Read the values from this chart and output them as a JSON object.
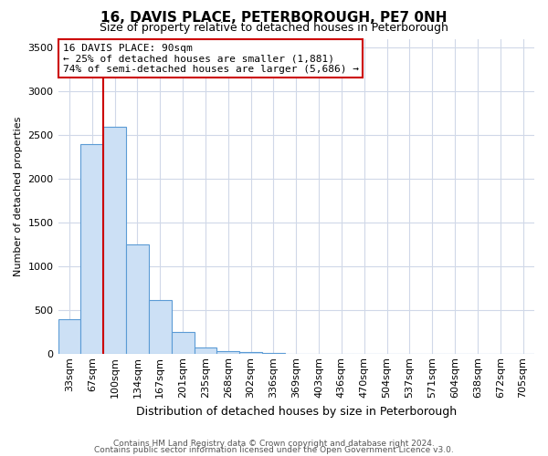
{
  "title": "16, DAVIS PLACE, PETERBOROUGH, PE7 0NH",
  "subtitle": "Size of property relative to detached houses in Peterborough",
  "xlabel": "Distribution of detached houses by size in Peterborough",
  "ylabel": "Number of detached properties",
  "categories": [
    "33sqm",
    "67sqm",
    "100sqm",
    "134sqm",
    "167sqm",
    "201sqm",
    "235sqm",
    "268sqm",
    "302sqm",
    "336sqm",
    "369sqm",
    "403sqm",
    "436sqm",
    "470sqm",
    "504sqm",
    "537sqm",
    "571sqm",
    "604sqm",
    "638sqm",
    "672sqm",
    "705sqm"
  ],
  "values": [
    400,
    2400,
    2600,
    1250,
    620,
    250,
    75,
    40,
    20,
    10,
    5,
    0,
    0,
    0,
    0,
    0,
    0,
    0,
    0,
    0,
    0
  ],
  "bar_color": "#cce0f5",
  "bar_edge_color": "#5b9bd5",
  "red_line_x": 1.5,
  "annotation_line1": "16 DAVIS PLACE: 90sqm",
  "annotation_line2": "← 25% of detached houses are smaller (1,881)",
  "annotation_line3": "74% of semi-detached houses are larger (5,686) →",
  "annotation_box_color": "#ffffff",
  "annotation_border_color": "#cc0000",
  "ylim": [
    0,
    3600
  ],
  "yticks": [
    0,
    500,
    1000,
    1500,
    2000,
    2500,
    3000,
    3500
  ],
  "footer1": "Contains HM Land Registry data © Crown copyright and database right 2024.",
  "footer2": "Contains public sector information licensed under the Open Government Licence v3.0.",
  "background_color": "#ffffff",
  "grid_color": "#d0d8e8",
  "title_fontsize": 11,
  "subtitle_fontsize": 9,
  "ylabel_fontsize": 8,
  "xlabel_fontsize": 9,
  "tick_fontsize": 8,
  "annot_fontsize": 8
}
